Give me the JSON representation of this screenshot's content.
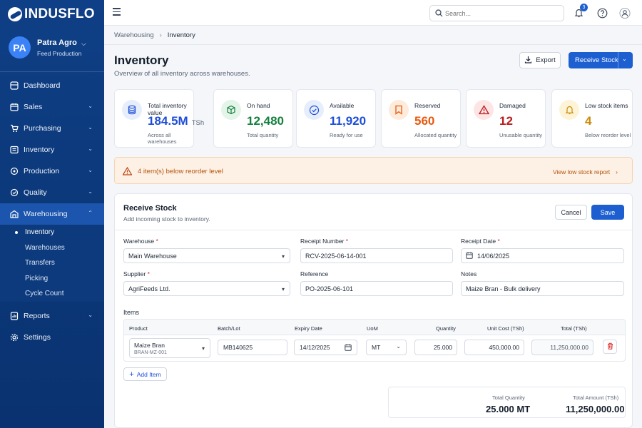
{
  "app": {
    "name": "INDUSFLO"
  },
  "user": {
    "initials": "PA",
    "name": "Patra Agro",
    "role": "Feed Production"
  },
  "sidebar": {
    "items": [
      {
        "label": "Dashboard",
        "icon": "dashboard-icon"
      },
      {
        "label": "Sales",
        "icon": "sales-icon"
      },
      {
        "label": "Purchasing",
        "icon": "cart-icon"
      },
      {
        "label": "Inventory",
        "icon": "inventory-icon"
      },
      {
        "label": "Production",
        "icon": "production-icon"
      },
      {
        "label": "Quality",
        "icon": "quality-icon"
      },
      {
        "label": "Warehousing",
        "icon": "warehouse-icon"
      },
      {
        "label": "Reports",
        "icon": "reports-icon"
      },
      {
        "label": "Settings",
        "icon": "gear-icon"
      }
    ],
    "warehousing_sub": [
      "Inventory",
      "Warehouses",
      "Transfers",
      "Picking",
      "Cycle Count"
    ]
  },
  "topbar": {
    "search_placeholder": "Search...",
    "notification_count": "3"
  },
  "breadcrumb": {
    "parent": "Warehousing",
    "current": "Inventory"
  },
  "page": {
    "title": "Inventory",
    "subtitle": "Overview of all inventory across warehouses."
  },
  "actions": {
    "export": "Export",
    "receive": "Receive Stock"
  },
  "cards": [
    {
      "title": "Total inventory value",
      "value": "184.5M",
      "unit": "TSh",
      "sub": "Across all warehouses",
      "color": "#1d4ed8",
      "bg": "#e6eefc"
    },
    {
      "title": "On hand",
      "value": "12,480",
      "sub": "Total quantity",
      "color": "#15803d",
      "bg": "#e3f4e8"
    },
    {
      "title": "Available",
      "value": "11,920",
      "sub": "Ready for use",
      "color": "#1d4ed8",
      "bg": "#e6eefc"
    },
    {
      "title": "Reserved",
      "value": "560",
      "sub": "Allocated quantity",
      "color": "#ea580c",
      "bg": "#fdebdc"
    },
    {
      "title": "Damaged",
      "value": "12",
      "sub": "Unusable quantity",
      "color": "#b91c1c",
      "bg": "#fde5e5"
    },
    {
      "title": "Low stock items",
      "value": "4",
      "sub": "Below reorder level",
      "color": "#ca8a04",
      "bg": "#fdf3d6"
    }
  ],
  "alert": {
    "text": "4 item(s) below reorder level",
    "link": "View low stock report"
  },
  "form": {
    "title": "Receive Stock",
    "subtitle": "Add incoming stock to inventory.",
    "cancel": "Cancel",
    "save": "Save",
    "warehouse": {
      "label": "Warehouse",
      "value": "Main Warehouse"
    },
    "receipt_number": {
      "label": "Receipt Number",
      "value": "RCV-2025-06-14-001"
    },
    "receipt_date": {
      "label": "Receipt Date",
      "value": "14/06/2025"
    },
    "supplier": {
      "label": "Supplier",
      "value": "AgriFeeds Ltd."
    },
    "reference": {
      "label": "Reference",
      "value": "PO-2025-06-101"
    },
    "notes": {
      "label": "Notes",
      "value": "Maize Bran - Bulk delivery"
    },
    "items_label": "Items",
    "columns": [
      "Product",
      "Batch/Lot",
      "Expiry Date",
      "UoM",
      "Quantity",
      "Unit Cost (TSh)",
      "Total (TSh)"
    ],
    "row": {
      "product": "Maize Bran",
      "product_code": "BRAN-MZ-001",
      "batch": "MB140625",
      "expiry": "14/12/2025",
      "uom": "MT",
      "quantity": "25.000",
      "unit_cost": "450,000.00",
      "total": "11,250,000.00"
    },
    "add_item": "Add Item",
    "total_quantity_label": "Total Quantity",
    "total_quantity": "25.000 MT",
    "total_amount_label": "Total Amount (TSh)",
    "total_amount": "11,250,000.00"
  }
}
